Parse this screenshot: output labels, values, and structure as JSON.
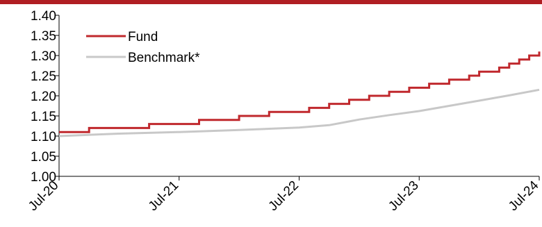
{
  "colors": {
    "header_bar": "#b01e23",
    "fund": "#c0282d",
    "benchmark": "#c8c8c8",
    "axis": "#000000"
  },
  "chart_data": {
    "type": "line",
    "title": "",
    "xlabel": "",
    "ylabel": "",
    "x_range": [
      "2020-07",
      "2024-07"
    ],
    "ylim": [
      1.0,
      1.4
    ],
    "y_ticks": [
      "1.00",
      "1.05",
      "1.10",
      "1.15",
      "1.20",
      "1.25",
      "1.30",
      "1.35",
      "1.40"
    ],
    "x_ticks": [
      "Jul-20",
      "Jul-21",
      "Jul-22",
      "Jul-23",
      "Jul-24"
    ],
    "grid": false,
    "legend_position": "top-left",
    "series": [
      {
        "name": "Fund",
        "color": "#c0282d",
        "style": "step",
        "points": [
          [
            "2020-07",
            1.11
          ],
          [
            "2020-10",
            1.12
          ],
          [
            "2021-04",
            1.13
          ],
          [
            "2021-09",
            1.14
          ],
          [
            "2022-01",
            1.15
          ],
          [
            "2022-04",
            1.16
          ],
          [
            "2022-08",
            1.17
          ],
          [
            "2022-10",
            1.18
          ],
          [
            "2022-12",
            1.19
          ],
          [
            "2023-02",
            1.2
          ],
          [
            "2023-04",
            1.21
          ],
          [
            "2023-06",
            1.22
          ],
          [
            "2023-08",
            1.23
          ],
          [
            "2023-10",
            1.24
          ],
          [
            "2023-12",
            1.25
          ],
          [
            "2024-01",
            1.26
          ],
          [
            "2024-03",
            1.27
          ],
          [
            "2024-04",
            1.28
          ],
          [
            "2024-05",
            1.29
          ],
          [
            "2024-06",
            1.3
          ],
          [
            "2024-07",
            1.31
          ]
        ]
      },
      {
        "name": "Benchmark*",
        "color": "#c8c8c8",
        "style": "line",
        "points": [
          [
            "2020-07",
            1.1
          ],
          [
            "2021-01",
            1.106
          ],
          [
            "2021-07",
            1.11
          ],
          [
            "2022-01",
            1.115
          ],
          [
            "2022-07",
            1.121
          ],
          [
            "2022-10",
            1.127
          ],
          [
            "2023-01",
            1.141
          ],
          [
            "2023-04",
            1.152
          ],
          [
            "2023-07",
            1.162
          ],
          [
            "2023-10",
            1.175
          ],
          [
            "2024-01",
            1.188
          ],
          [
            "2024-04",
            1.201
          ],
          [
            "2024-07",
            1.215
          ]
        ]
      }
    ]
  }
}
